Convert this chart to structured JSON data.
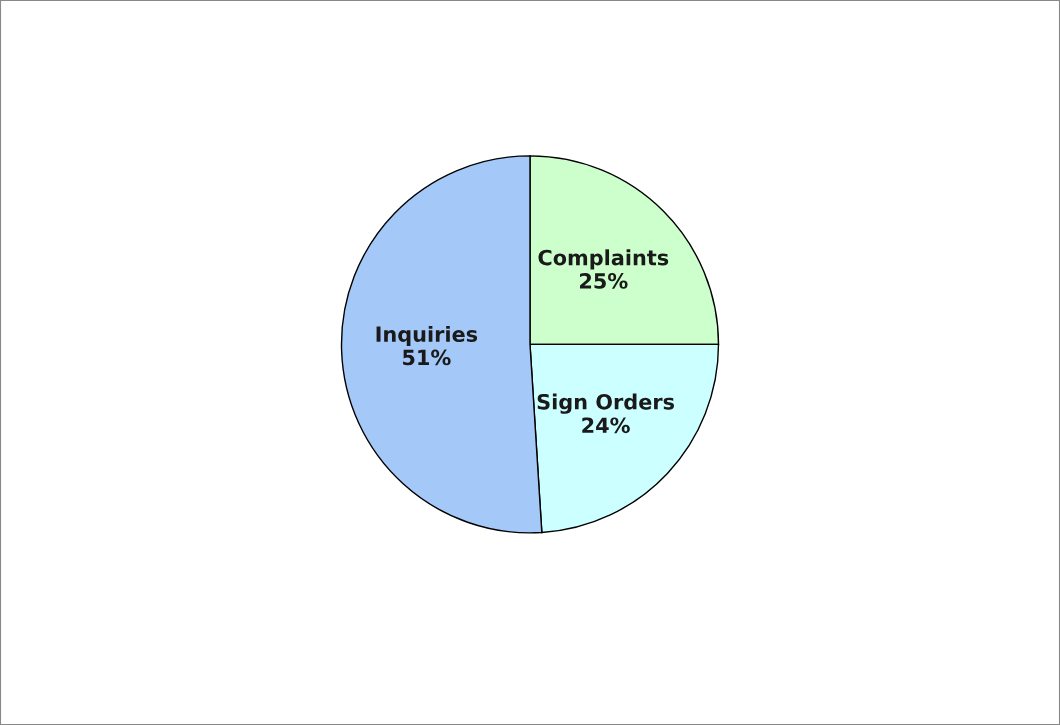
{
  "chart_data": {
    "type": "pie",
    "categories": [
      "Complaints",
      "Sign Orders",
      "Inquiries"
    ],
    "values": [
      25,
      24,
      51
    ],
    "value_labels": [
      "25%",
      "24%",
      "51%"
    ],
    "colors": [
      "#ccffcc",
      "#ccffff",
      "#a4c8f8"
    ]
  }
}
